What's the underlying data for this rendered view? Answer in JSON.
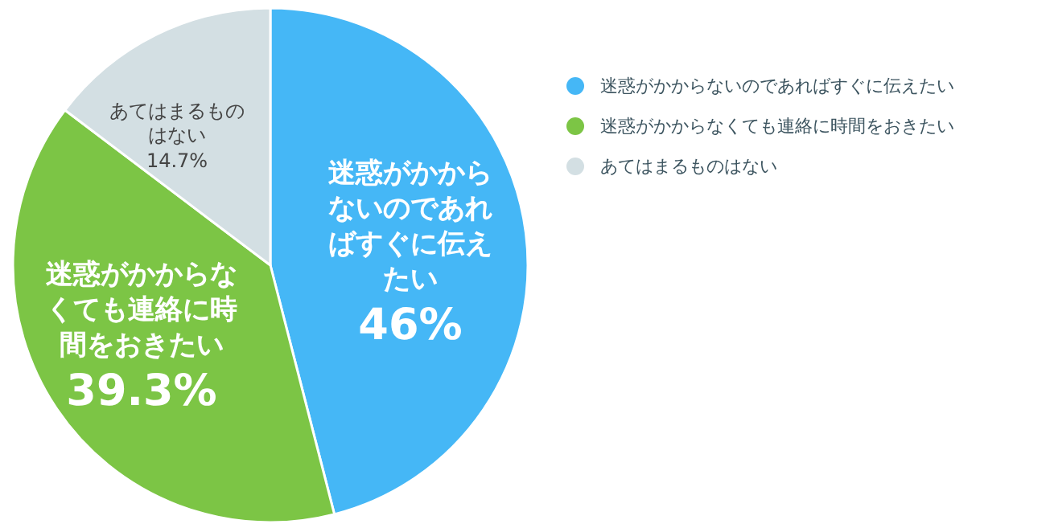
{
  "chart_data": {
    "type": "pie",
    "categories": [
      "迷惑がかからないのであればすぐに伝えたい",
      "迷惑がかからなくても連絡に時間をおきたい",
      "あてはまるものはない"
    ],
    "values": [
      46,
      39.3,
      14.7
    ],
    "colors": [
      "#45b7f6",
      "#7cc545",
      "#d3dfe3"
    ],
    "value_labels": [
      "46%",
      "39.3%",
      "14.7%"
    ],
    "legend": "right"
  }
}
